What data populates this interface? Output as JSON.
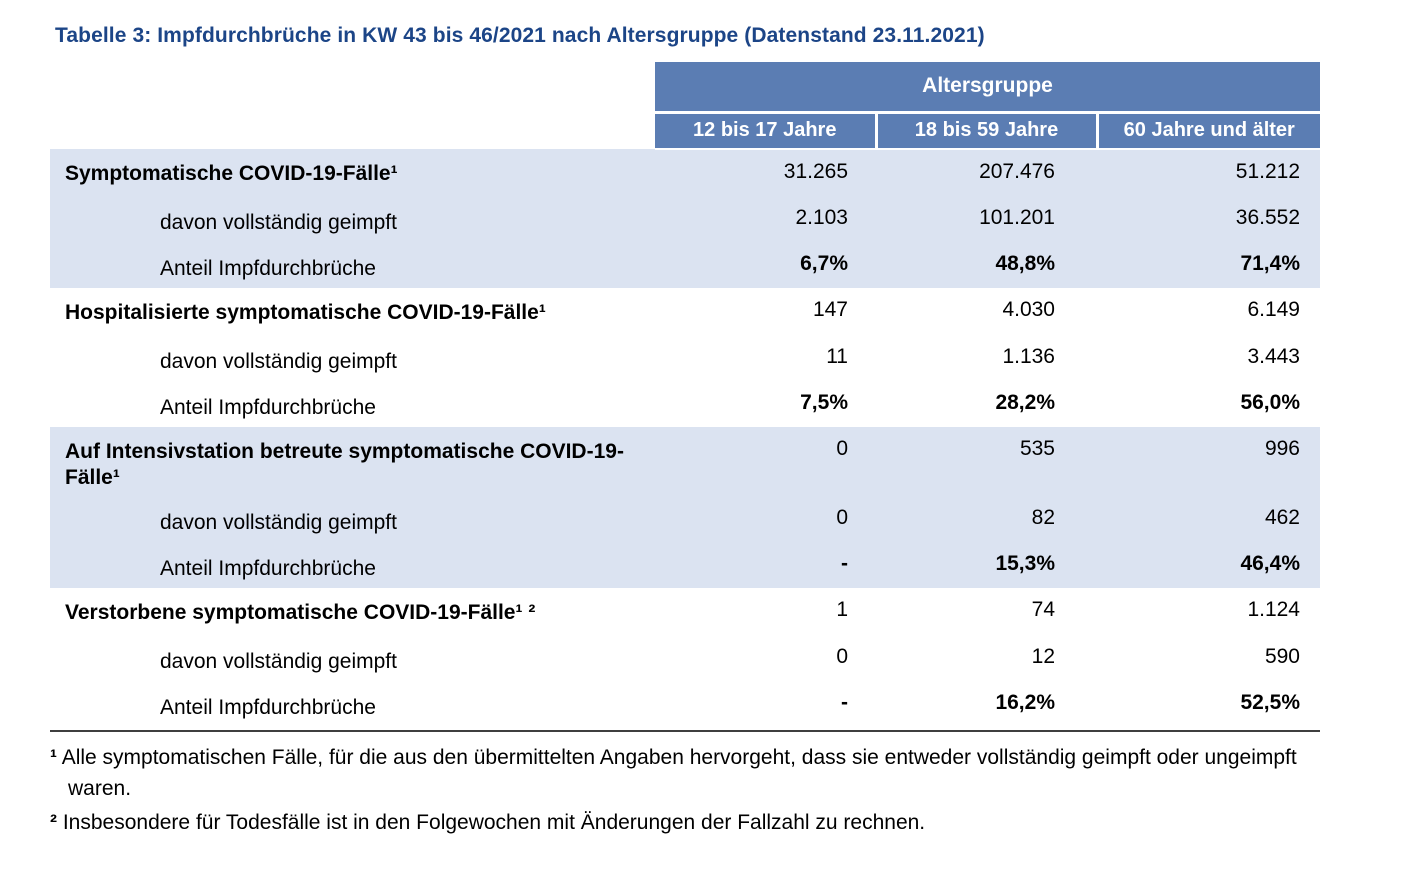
{
  "title": "Tabelle 3: Impfdurchbrüche in KW 43 bis 46/2021 nach Altersgruppe (Datenstand 23.11.2021)",
  "table": {
    "group_header": "Altersgruppe",
    "columns": [
      "12 bis 17 Jahre",
      "18 bis 59 Jahre",
      "60 Jahre und älter"
    ],
    "sections": [
      {
        "label": "Symptomatische COVID-19-Fälle¹",
        "values": [
          "31.265",
          "207.476",
          "51.212"
        ],
        "sub_rows": [
          {
            "label": "davon vollständig geimpft",
            "values": [
              "2.103",
              "101.201",
              "36.552"
            ]
          },
          {
            "label": "Anteil Impfdurchbrüche",
            "values": [
              "6,7%",
              "48,8%",
              "71,4%"
            ]
          }
        ]
      },
      {
        "label": "Hospitalisierte symptomatische COVID-19-Fälle¹",
        "values": [
          "147",
          "4.030",
          "6.149"
        ],
        "sub_rows": [
          {
            "label": "davon vollständig geimpft",
            "values": [
              "11",
              "1.136",
              "3.443"
            ]
          },
          {
            "label": "Anteil Impfdurchbrüche",
            "values": [
              "7,5%",
              "28,2%",
              "56,0%"
            ]
          }
        ]
      },
      {
        "label": "Auf Intensivstation betreute symptomatische COVID-19-Fälle¹",
        "values": [
          "0",
          "535",
          "996"
        ],
        "sub_rows": [
          {
            "label": "davon vollständig geimpft",
            "values": [
              "0",
              "82",
              "462"
            ]
          },
          {
            "label": "Anteil Impfdurchbrüche",
            "values": [
              "-",
              "15,3%",
              "46,4%"
            ]
          }
        ]
      },
      {
        "label": "Verstorbene symptomatische COVID-19-Fälle¹ ²",
        "values": [
          "1",
          "74",
          "1.124"
        ],
        "sub_rows": [
          {
            "label": "davon vollständig geimpft",
            "values": [
              "0",
              "12",
              "590"
            ]
          },
          {
            "label": "Anteil Impfdurchbrüche",
            "values": [
              "-",
              "16,2%",
              "52,5%"
            ]
          }
        ]
      }
    ]
  },
  "footnotes": [
    {
      "marker": "¹",
      "text": "Alle symptomatischen Fälle, für die aus den übermittelten Angaben hervorgeht, dass sie entweder vollständig geimpft oder ungeimpft waren."
    },
    {
      "marker": "²",
      "text": "Insbesondere für Todesfälle ist in den Folgewochen mit Änderungen der Fallzahl zu rechnen."
    }
  ],
  "colors": {
    "header_blue": "#5b7db3",
    "band_blue": "#dbe3f1",
    "title_blue": "#1c4587"
  }
}
